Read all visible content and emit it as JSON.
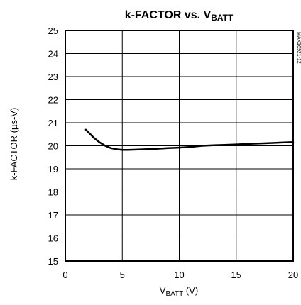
{
  "chart_data": {
    "type": "line",
    "title": {
      "main": "k-FACTOR vs. V",
      "sub": "BATT"
    },
    "xlabel": {
      "main": "V",
      "sub": "BATT",
      "suffix": " (V)"
    },
    "ylabel": "k-FACTOR (µs-V)",
    "xlim": [
      0,
      20
    ],
    "ylim": [
      15,
      25
    ],
    "xticks": [
      0,
      5,
      10,
      15,
      20
    ],
    "yticks": [
      15,
      16,
      17,
      18,
      19,
      20,
      21,
      22,
      23,
      24,
      25
    ],
    "grid": true,
    "part_number": "MAX16921-12",
    "series": [
      {
        "color": "#000000",
        "x": [
          1.8,
          2.5,
          3,
          3.5,
          4,
          4.5,
          5,
          5.5,
          6,
          7,
          8,
          9,
          10,
          11,
          12,
          13,
          14,
          15,
          16,
          17,
          18,
          19,
          20
        ],
        "y": [
          20.7,
          20.35,
          20.15,
          20.0,
          19.9,
          19.85,
          19.82,
          19.82,
          19.83,
          19.85,
          19.87,
          19.9,
          19.92,
          19.95,
          20.0,
          20.02,
          20.04,
          20.06,
          20.08,
          20.1,
          20.12,
          20.14,
          20.16
        ]
      }
    ]
  }
}
